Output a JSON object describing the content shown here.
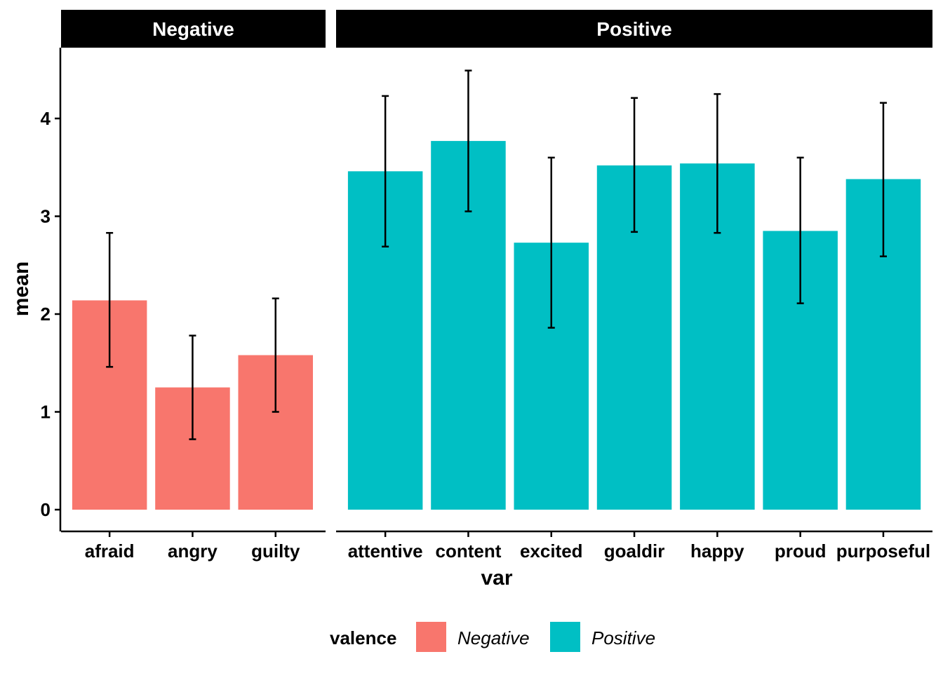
{
  "chart_data": {
    "type": "bar",
    "ylabel": "mean",
    "xlabel": "var",
    "ylim": [
      0,
      4.6
    ],
    "y_ticks": [
      0,
      1,
      2,
      3,
      4
    ],
    "y_tick_labels": [
      "0",
      "1",
      "2",
      "3",
      "4"
    ],
    "grid": false,
    "legend": {
      "position": "bottom",
      "title": "valence",
      "entries": [
        "Negative",
        "Positive"
      ]
    },
    "colors": {
      "Negative": "#F8766D",
      "Positive": "#00BFC4"
    },
    "panels": [
      {
        "strip": "Negative",
        "series": "Negative",
        "categories": [
          "afraid",
          "angry",
          "guilty"
        ],
        "values": [
          2.14,
          1.25,
          1.58
        ],
        "error_low": [
          1.46,
          0.72,
          1.0
        ],
        "error_high": [
          2.83,
          1.78,
          2.16
        ]
      },
      {
        "strip": "Positive",
        "series": "Positive",
        "categories": [
          "attentive",
          "content",
          "excited",
          "goaldir",
          "happy",
          "proud",
          "purposeful"
        ],
        "values": [
          3.46,
          3.77,
          2.73,
          3.52,
          3.54,
          2.85,
          3.38
        ],
        "error_low": [
          2.69,
          3.05,
          1.86,
          2.84,
          2.83,
          2.11,
          2.59
        ],
        "error_high": [
          4.23,
          4.49,
          3.6,
          4.21,
          4.25,
          3.6,
          4.16
        ]
      }
    ]
  }
}
